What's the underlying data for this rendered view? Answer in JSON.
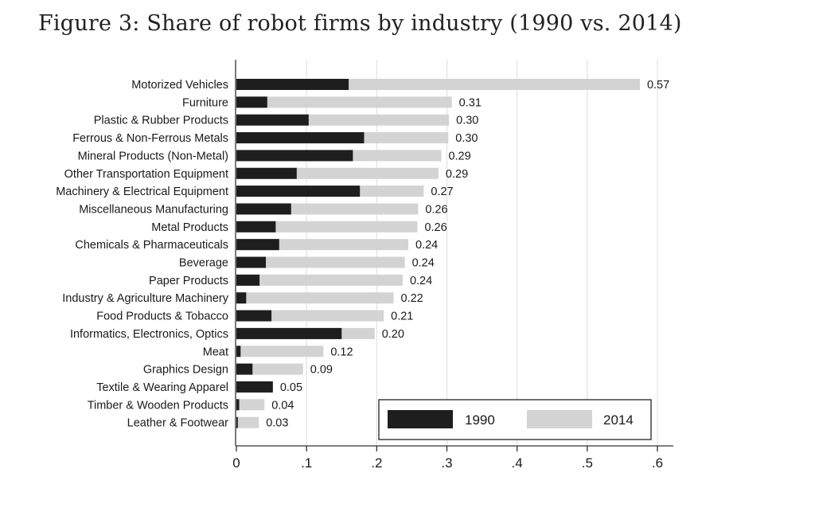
{
  "chart_data": {
    "type": "bar",
    "orientation": "horizontal",
    "title": "Figure 3: Share of robot firms by industry (1990 vs. 2014)",
    "xlabel": "",
    "ylabel": "",
    "xlim": [
      0,
      0.6
    ],
    "x_ticks": [
      0,
      0.1,
      0.2,
      0.3,
      0.4,
      0.5,
      0.6
    ],
    "x_tick_labels": [
      "0",
      ".1",
      ".2",
      ".3",
      ".4",
      ".5",
      ".6"
    ],
    "grid": true,
    "legend_position": "bottom-right",
    "categories": [
      "Motorized Vehicles",
      "Furniture",
      "Plastic & Rubber Products",
      "Ferrous & Non-Ferrous Metals",
      "Mineral Products (Non-Metal)",
      "Other Transportation Equipment",
      "Machinery & Electrical Equipment",
      "Miscellaneous Manufacturing",
      "Metal Products",
      "Chemicals & Pharmaceuticals",
      "Beverage",
      "Paper Products",
      "Industry & Agriculture Machinery",
      "Food Products & Tobacco",
      "Informatics, Electronics, Optics",
      "Meat",
      "Graphics Design",
      "Textile & Wearing Apparel",
      "Timber & Wooden Products",
      "Leather & Footwear"
    ],
    "series": [
      {
        "name": "1990",
        "color": "#1e1e1e",
        "values": [
          0.16,
          0.044,
          0.103,
          0.182,
          0.166,
          0.086,
          0.176,
          0.078,
          0.056,
          0.061,
          0.042,
          0.033,
          0.014,
          0.05,
          0.15,
          0.006,
          0.023,
          0.052,
          0.004,
          0.002
        ]
      },
      {
        "name": "2014",
        "color": "#d3d3d3",
        "values": [
          0.575,
          0.307,
          0.303,
          0.302,
          0.292,
          0.288,
          0.267,
          0.259,
          0.258,
          0.245,
          0.24,
          0.237,
          0.224,
          0.21,
          0.197,
          0.124,
          0.095,
          0.048,
          0.04,
          0.032
        ]
      }
    ],
    "value_labels": [
      "0.57",
      "0.31",
      "0.30",
      "0.30",
      "0.29",
      "0.29",
      "0.27",
      "0.26",
      "0.26",
      "0.24",
      "0.24",
      "0.24",
      "0.22",
      "0.21",
      "0.20",
      "0.12",
      "0.09",
      "0.05",
      "0.04",
      "0.03"
    ]
  }
}
